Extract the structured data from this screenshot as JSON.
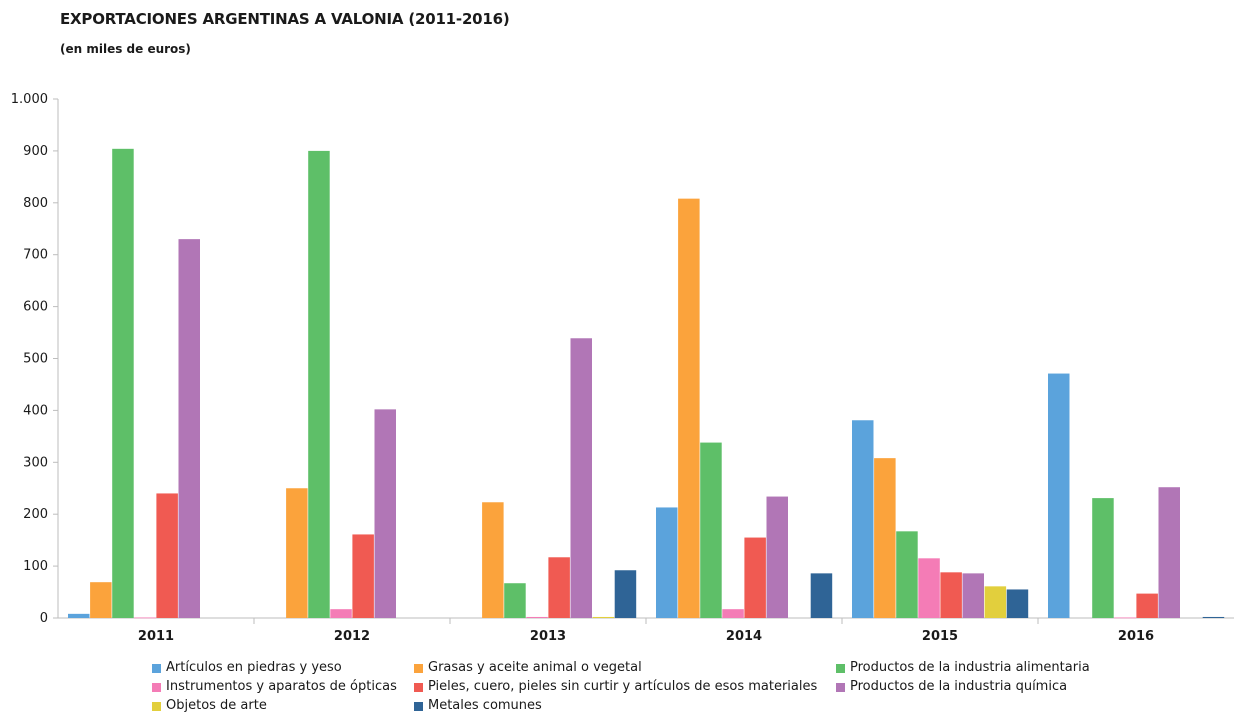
{
  "header": {
    "title": "EXPORTACIONES ARGENTINAS A VALONIA (2011-2016)",
    "subtitle": "(en miles de euros)"
  },
  "chart_data": {
    "type": "bar",
    "categories": [
      "2011",
      "2012",
      "2013",
      "2014",
      "2015",
      "2016"
    ],
    "ylim": [
      0,
      1000
    ],
    "yticks": [
      0,
      100,
      200,
      300,
      400,
      500,
      600,
      700,
      800,
      900,
      1000
    ],
    "ytick_labels": [
      "0",
      "100",
      "200",
      "300",
      "400",
      "500",
      "600",
      "700",
      "800",
      "900",
      "1.000"
    ],
    "grid": false,
    "legend_position": "bottom",
    "series": [
      {
        "name": "Artículos en piedras y yeso",
        "color": "#5ba3dc",
        "values": [
          8,
          0,
          0,
          213,
          381,
          471
        ]
      },
      {
        "name": "Grasas y aceite animal o vegetal",
        "color": "#fba33c",
        "values": [
          69,
          250,
          223,
          808,
          308,
          0
        ]
      },
      {
        "name": "Productos de la industria alimentaria",
        "color": "#5ebf68",
        "values": [
          904,
          900,
          67,
          338,
          167,
          231
        ]
      },
      {
        "name": "Instrumentos y aparatos de ópticas",
        "color": "#f47cb6",
        "values": [
          1,
          17,
          2,
          17,
          115,
          1
        ]
      },
      {
        "name": "Pieles, cuero, pieles sin curtir y artículos de esos materiales",
        "color": "#f05a52",
        "values": [
          240,
          161,
          117,
          155,
          88,
          47
        ]
      },
      {
        "name": "Productos de la industria química",
        "color": "#b176b6",
        "values": [
          730,
          402,
          539,
          234,
          86,
          252
        ]
      },
      {
        "name": "Objetos de arte",
        "color": "#e2cf3d",
        "values": [
          0,
          0,
          2,
          0,
          61,
          0
        ]
      },
      {
        "name": "Metales comunes",
        "color": "#2f6496",
        "values": [
          0,
          0,
          92,
          86,
          55,
          2
        ]
      }
    ]
  }
}
